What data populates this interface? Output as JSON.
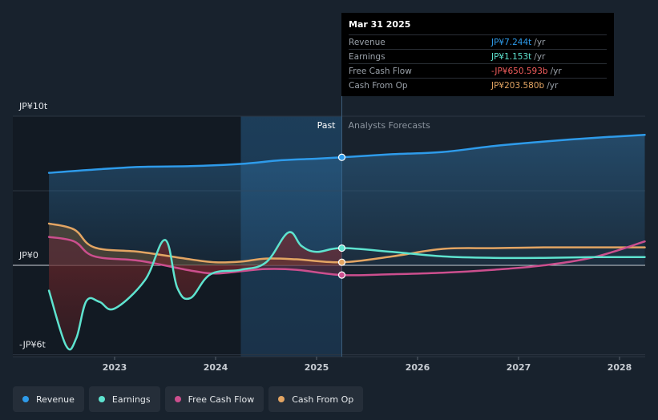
{
  "chart_data": {
    "type": "line",
    "y_unit": "JP¥ (trillions)",
    "y_ticks": [
      "JP¥10t",
      "JP¥0",
      "-JP¥6t"
    ],
    "ylim": [
      -6,
      10
    ],
    "x_ticks": [
      "2023",
      "2024",
      "2025",
      "2026",
      "2027",
      "2028"
    ],
    "xlim": [
      2022.3,
      2028.25
    ],
    "past_start": 2024.25,
    "divider_x": 2025.25,
    "region_labels": {
      "past": "Past",
      "forecast": "Analysts Forecasts"
    },
    "series": [
      {
        "name": "Revenue",
        "color": "#2e9bea",
        "points": [
          [
            2022.35,
            6.2
          ],
          [
            2022.75,
            6.4
          ],
          [
            2023.25,
            6.6
          ],
          [
            2023.75,
            6.65
          ],
          [
            2024.25,
            6.8
          ],
          [
            2024.65,
            7.05
          ],
          [
            2025.0,
            7.15
          ],
          [
            2025.25,
            7.244
          ],
          [
            2025.75,
            7.45
          ],
          [
            2026.25,
            7.6
          ],
          [
            2026.75,
            8.0
          ],
          [
            2027.25,
            8.3
          ],
          [
            2027.75,
            8.55
          ],
          [
            2028.25,
            8.75
          ]
        ]
      },
      {
        "name": "Earnings",
        "color": "#5ee3cf",
        "points": [
          [
            2022.35,
            -1.7
          ],
          [
            2022.52,
            -5.4
          ],
          [
            2022.62,
            -4.9
          ],
          [
            2022.72,
            -2.4
          ],
          [
            2022.85,
            -2.45
          ],
          [
            2023.0,
            -2.9
          ],
          [
            2023.3,
            -1.0
          ],
          [
            2023.5,
            1.7
          ],
          [
            2023.62,
            -1.5
          ],
          [
            2023.75,
            -2.2
          ],
          [
            2023.95,
            -0.6
          ],
          [
            2024.25,
            -0.3
          ],
          [
            2024.5,
            0.2
          ],
          [
            2024.72,
            2.2
          ],
          [
            2024.85,
            1.3
          ],
          [
            2025.0,
            0.9
          ],
          [
            2025.25,
            1.153
          ],
          [
            2025.75,
            0.9
          ],
          [
            2026.25,
            0.6
          ],
          [
            2026.75,
            0.5
          ],
          [
            2027.25,
            0.5
          ],
          [
            2027.75,
            0.55
          ],
          [
            2028.25,
            0.55
          ]
        ]
      },
      {
        "name": "Free Cash Flow",
        "color": "#cc4f8e",
        "points": [
          [
            2022.35,
            1.9
          ],
          [
            2022.6,
            1.6
          ],
          [
            2022.8,
            0.6
          ],
          [
            2023.25,
            0.3
          ],
          [
            2023.75,
            -0.35
          ],
          [
            2024.0,
            -0.55
          ],
          [
            2024.25,
            -0.4
          ],
          [
            2024.5,
            -0.25
          ],
          [
            2024.8,
            -0.3
          ],
          [
            2025.25,
            -0.651
          ],
          [
            2025.75,
            -0.6
          ],
          [
            2026.25,
            -0.5
          ],
          [
            2026.75,
            -0.3
          ],
          [
            2027.25,
            0.0
          ],
          [
            2027.75,
            0.55
          ],
          [
            2028.25,
            1.6
          ]
        ]
      },
      {
        "name": "Cash From Op",
        "color": "#e3a563",
        "points": [
          [
            2022.35,
            2.8
          ],
          [
            2022.6,
            2.4
          ],
          [
            2022.8,
            1.2
          ],
          [
            2023.25,
            0.9
          ],
          [
            2023.75,
            0.4
          ],
          [
            2024.0,
            0.2
          ],
          [
            2024.25,
            0.25
          ],
          [
            2024.5,
            0.45
          ],
          [
            2024.8,
            0.4
          ],
          [
            2025.25,
            0.204
          ],
          [
            2025.75,
            0.6
          ],
          [
            2026.25,
            1.1
          ],
          [
            2026.75,
            1.15
          ],
          [
            2027.25,
            1.2
          ],
          [
            2027.75,
            1.2
          ],
          [
            2028.25,
            1.2
          ]
        ]
      }
    ],
    "tooltip": {
      "date": "Mar 31 2025",
      "rows": [
        {
          "name": "Revenue",
          "value": "JP¥7.244t",
          "unit": "/yr",
          "color": "#2e9bea"
        },
        {
          "name": "Earnings",
          "value": "JP¥1.153t",
          "unit": "/yr",
          "color": "#5ee3cf"
        },
        {
          "name": "Free Cash Flow",
          "value": "-JP¥650.593b",
          "unit": "/yr",
          "color": "#f25d5d"
        },
        {
          "name": "Cash From Op",
          "value": "JP¥203.580b",
          "unit": "/yr",
          "color": "#e3a563"
        }
      ]
    },
    "legend": [
      {
        "name": "Revenue",
        "color": "#2e9bea"
      },
      {
        "name": "Earnings",
        "color": "#5ee3cf"
      },
      {
        "name": "Free Cash Flow",
        "color": "#cc4f8e"
      },
      {
        "name": "Cash From Op",
        "color": "#e3a563"
      }
    ]
  }
}
